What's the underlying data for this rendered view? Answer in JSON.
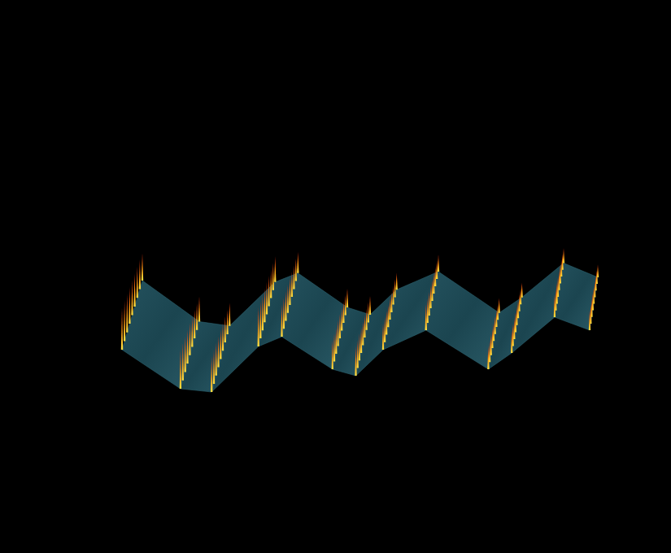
{
  "chart_data": {
    "type": "surface",
    "x": [
      0,
      1.5,
      2.3,
      3.5,
      4.1,
      5.4,
      6.0,
      6.7,
      7.8,
      9.4,
      10.0,
      11.1,
      12
    ],
    "values": [
      0.5,
      -0.7,
      -0.8,
      0.6,
      0.9,
      -0.1,
      -0.3,
      0.5,
      1.1,
      -0.1,
      0.4,
      1.5,
      1.1
    ],
    "spikes": [
      1.3,
      1.2,
      1.1,
      1.2,
      1.0,
      0.9,
      0.9,
      0.8,
      0.8,
      0.7,
      0.7,
      0.7,
      0.6
    ],
    "depths": [
      0,
      0.125,
      0.25,
      0.375,
      0.5,
      0.625,
      0.75,
      0.875,
      1
    ],
    "xlim": [
      0,
      12
    ],
    "ylim": [
      -1,
      2
    ],
    "tick_labels": false
  }
}
